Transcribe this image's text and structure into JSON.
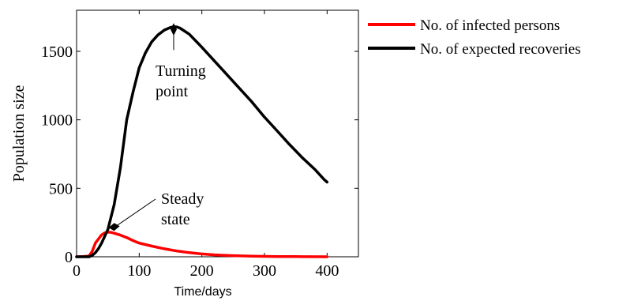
{
  "chart_data": {
    "type": "line",
    "xlabel": "Time/days",
    "ylabel": "Population size",
    "xlim": [
      0,
      450
    ],
    "ylim": [
      0,
      1800
    ],
    "xticks": [
      0,
      100,
      200,
      300,
      400
    ],
    "yticks": [
      0,
      500,
      1000,
      1500
    ],
    "grid": false,
    "legend_position": "outside-right",
    "series": [
      {
        "name": "No. of infected persons",
        "color": "#ff0000",
        "x": [
          0,
          10,
          20,
          25,
          30,
          40,
          45,
          50,
          55,
          60,
          70,
          80,
          90,
          100,
          120,
          140,
          160,
          180,
          200,
          220,
          250,
          280,
          300,
          320,
          350,
          400
        ],
        "y": [
          0,
          1,
          5,
          40,
          100,
          160,
          175,
          180,
          178,
          172,
          158,
          140,
          118,
          100,
          78,
          58,
          42,
          30,
          21,
          14,
          8,
          4,
          3,
          2,
          1,
          0
        ]
      },
      {
        "name": "No. of expected recoveries",
        "color": "#000000",
        "x": [
          0,
          20,
          25,
          30,
          35,
          40,
          50,
          60,
          70,
          80,
          90,
          100,
          110,
          120,
          130,
          140,
          150,
          155,
          160,
          165,
          170,
          180,
          200,
          220,
          250,
          280,
          300,
          320,
          340,
          360,
          380,
          395,
          400
        ],
        "y": [
          0,
          0,
          10,
          30,
          60,
          100,
          200,
          380,
          650,
          1000,
          1200,
          1380,
          1490,
          1570,
          1620,
          1655,
          1675,
          1680,
          1678,
          1670,
          1655,
          1625,
          1530,
          1430,
          1280,
          1130,
          1020,
          920,
          820,
          725,
          640,
          565,
          545
        ]
      }
    ],
    "annotations": [
      {
        "text": [
          "Turning",
          "point"
        ],
        "target": [
          155,
          1660
        ]
      },
      {
        "text": [
          "Steady",
          "state"
        ],
        "target": [
          60,
          218
        ]
      }
    ]
  }
}
